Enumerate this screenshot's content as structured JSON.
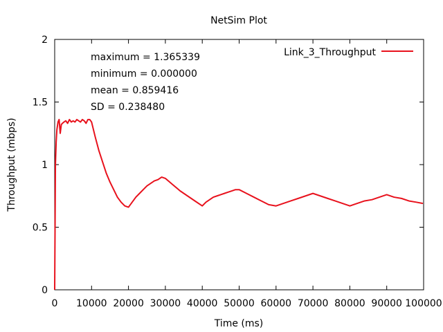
{
  "chart_data": {
    "type": "line",
    "title": "NetSim Plot",
    "xlabel": "Time (ms)",
    "ylabel": "Throughput (mbps)",
    "xlim": [
      0,
      100000
    ],
    "ylim": [
      0,
      2
    ],
    "x_ticks": [
      0,
      10000,
      20000,
      30000,
      40000,
      50000,
      60000,
      70000,
      80000,
      90000,
      100000
    ],
    "x_tick_labels": [
      "0",
      "10000",
      "20000",
      "30000",
      "40000",
      "50000",
      "60000",
      "70000",
      "80000",
      "90000",
      "100000"
    ],
    "y_ticks": [
      0,
      0.5,
      1,
      1.5,
      2
    ],
    "y_tick_labels": [
      "0",
      "0.5",
      "1",
      "1.5",
      "2"
    ],
    "grid": false,
    "legend_position": "top-right",
    "stats": [
      "maximum = 1.365339",
      "minimum = 0.000000",
      "mean = 0.859416",
      "SD = 0.238480"
    ],
    "series": [
      {
        "name": "Link_3_Throughput",
        "color": "#e8111c",
        "x": [
          0,
          200,
          400,
          600,
          900,
          1200,
          1500,
          1800,
          2100,
          2500,
          3000,
          3500,
          4000,
          4500,
          5000,
          5500,
          6000,
          6500,
          7000,
          7500,
          8000,
          8500,
          9000,
          9500,
          10000,
          11000,
          12000,
          13000,
          14000,
          15000,
          16000,
          17000,
          18000,
          19000,
          20000,
          21000,
          22000,
          23000,
          24000,
          25000,
          26000,
          27000,
          28000,
          29000,
          30000,
          32000,
          34000,
          36000,
          38000,
          40000,
          41000,
          42000,
          43000,
          44000,
          45000,
          46000,
          47000,
          48000,
          49000,
          50000,
          52000,
          54000,
          56000,
          58000,
          60000,
          62000,
          64000,
          66000,
          68000,
          70000,
          72000,
          74000,
          76000,
          78000,
          80000,
          82000,
          84000,
          86000,
          88000,
          90000,
          92000,
          94000,
          96000,
          98000,
          99800
        ],
        "y": [
          0,
          1.0,
          1.18,
          1.28,
          1.34,
          1.36,
          1.25,
          1.32,
          1.33,
          1.34,
          1.35,
          1.33,
          1.36,
          1.34,
          1.35,
          1.34,
          1.36,
          1.35,
          1.34,
          1.36,
          1.35,
          1.33,
          1.36,
          1.36,
          1.34,
          1.22,
          1.11,
          1.02,
          0.93,
          0.86,
          0.8,
          0.74,
          0.7,
          0.67,
          0.66,
          0.7,
          0.74,
          0.77,
          0.8,
          0.83,
          0.85,
          0.87,
          0.88,
          0.9,
          0.89,
          0.84,
          0.79,
          0.75,
          0.71,
          0.67,
          0.7,
          0.72,
          0.74,
          0.75,
          0.76,
          0.77,
          0.78,
          0.79,
          0.8,
          0.8,
          0.77,
          0.74,
          0.71,
          0.68,
          0.67,
          0.69,
          0.71,
          0.73,
          0.75,
          0.77,
          0.75,
          0.73,
          0.71,
          0.69,
          0.67,
          0.69,
          0.71,
          0.72,
          0.74,
          0.76,
          0.74,
          0.73,
          0.71,
          0.7,
          0.69
        ]
      }
    ]
  }
}
